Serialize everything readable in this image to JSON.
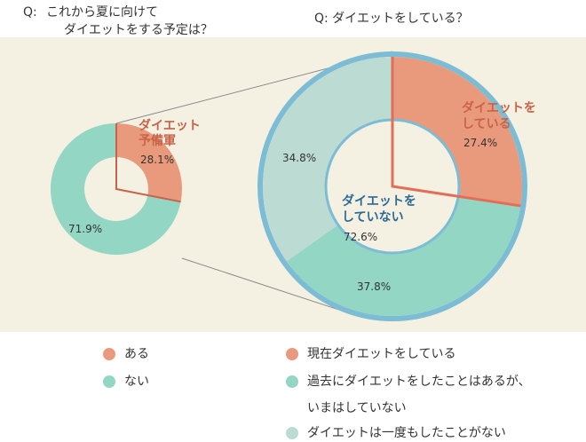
{
  "questions": {
    "q1_prefix": "Q:",
    "q1_line1": "これから夏に向けて",
    "q1_line2": "ダイエットをする予定は？",
    "q2": "Q: ダイエットをしている？"
  },
  "colors": {
    "salmon": "#e99a7c",
    "salmon_dark": "#c86348",
    "mint": "#93d6c4",
    "pale": "#bcdcd3",
    "blue_ring": "#7cbcd4",
    "blue_text": "#2c6a96",
    "connector": "#8a8a8a"
  },
  "chart_data": [
    {
      "type": "pie",
      "variant": "donut",
      "question": "これから夏に向けて ダイエットをする予定は？",
      "slices": [
        {
          "label_lines": [
            "ダイエット",
            "予備軍"
          ],
          "legend": "ある",
          "value": 28.1,
          "display": "28.1%",
          "color": "#e99a7c"
        },
        {
          "label_lines": [],
          "legend": "ない",
          "value": 71.9,
          "display": "71.9%",
          "color": "#93d6c4"
        }
      ]
    },
    {
      "type": "pie",
      "variant": "donut",
      "question": "ダイエットをしている？",
      "slices": [
        {
          "label_lines": [
            "ダイエットを",
            "している"
          ],
          "legend": "現在ダイエットをしている",
          "value": 27.4,
          "display": "27.4%",
          "color": "#e99a7c"
        },
        {
          "label_lines": [],
          "legend": "過去にダイエットをしたことはあるが、いまはしていない",
          "value": 37.8,
          "display": "37.8%",
          "color": "#93d6c4"
        },
        {
          "label_lines": [],
          "legend": "ダイエットは一度もしたことがない",
          "value": 34.8,
          "display": "34.8%",
          "color": "#bcdcd3"
        }
      ],
      "center_label_lines": [
        "ダイエットを",
        "していない"
      ],
      "center_value": "72.6%"
    }
  ],
  "legend_left": [
    {
      "label": "ある",
      "color": "#e99a7c"
    },
    {
      "label": "ない",
      "color": "#93d6c4"
    }
  ],
  "legend_right": [
    {
      "label": "現在ダイエットをしている",
      "color": "#e99a7c"
    },
    {
      "label": "過去にダイエットをしたことはあるが、",
      "label2": "いまはしていない",
      "color": "#93d6c4"
    },
    {
      "label": "ダイエットは一度もしたことがない",
      "color": "#bcdcd3"
    }
  ]
}
